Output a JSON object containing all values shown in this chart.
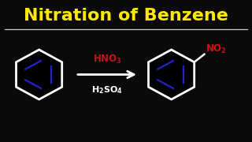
{
  "title": "Nitration of Benzene",
  "title_color": "#FFE800",
  "title_fontsize": 16,
  "bg_color": "#0a0a0a",
  "line_color": "#FFFFFF",
  "benzene_edge": "#FFFFFF",
  "benzene_face": "#000000",
  "benzene_interior": "#2222CC",
  "arrow_color": "#FFFFFF",
  "reagent_color": "#CC1111",
  "reagent2_color": "#FFFFFF",
  "no2_color": "#CC1111",
  "underline_color": "#CCCCCC",
  "lw_hex": 2.0,
  "lw_int": 1.6
}
